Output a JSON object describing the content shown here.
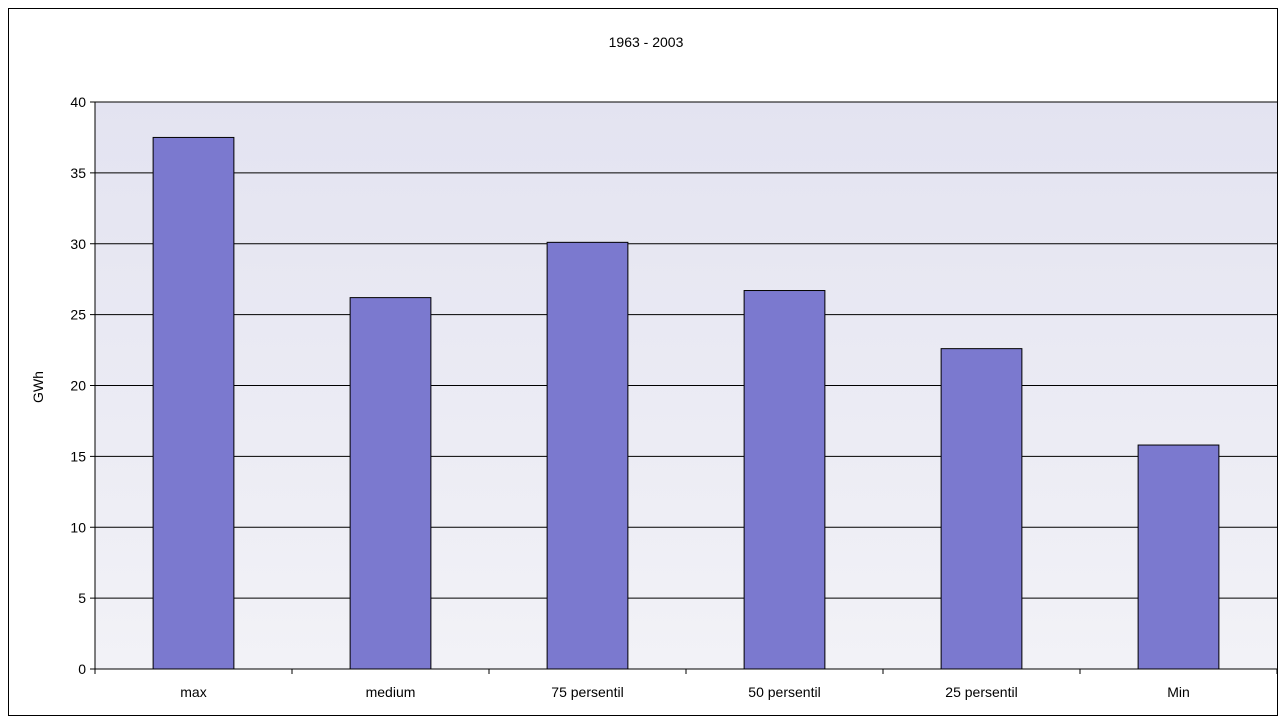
{
  "chart_data": {
    "type": "bar",
    "title": "1963 - 2003",
    "xlabel": "",
    "ylabel": "GWh",
    "categories": [
      "max",
      "medium",
      "75 persentil",
      "50 persentil",
      "25 persentil",
      "Min"
    ],
    "values": [
      37.5,
      26.2,
      30.1,
      26.7,
      22.6,
      15.8
    ],
    "ylim": [
      0,
      40
    ],
    "yticks": [
      0,
      5,
      10,
      15,
      20,
      25,
      30,
      35,
      40
    ],
    "ytick_labels": [
      "0",
      "5",
      "10",
      "15",
      "20",
      "25",
      "30",
      "35",
      "40"
    ],
    "grid": true,
    "legend": "none",
    "colors": {
      "bar_fill": "#7b79cf",
      "bar_stroke": "#000000",
      "plot_background": "#e6e6f2",
      "gridline": "#000000"
    }
  }
}
